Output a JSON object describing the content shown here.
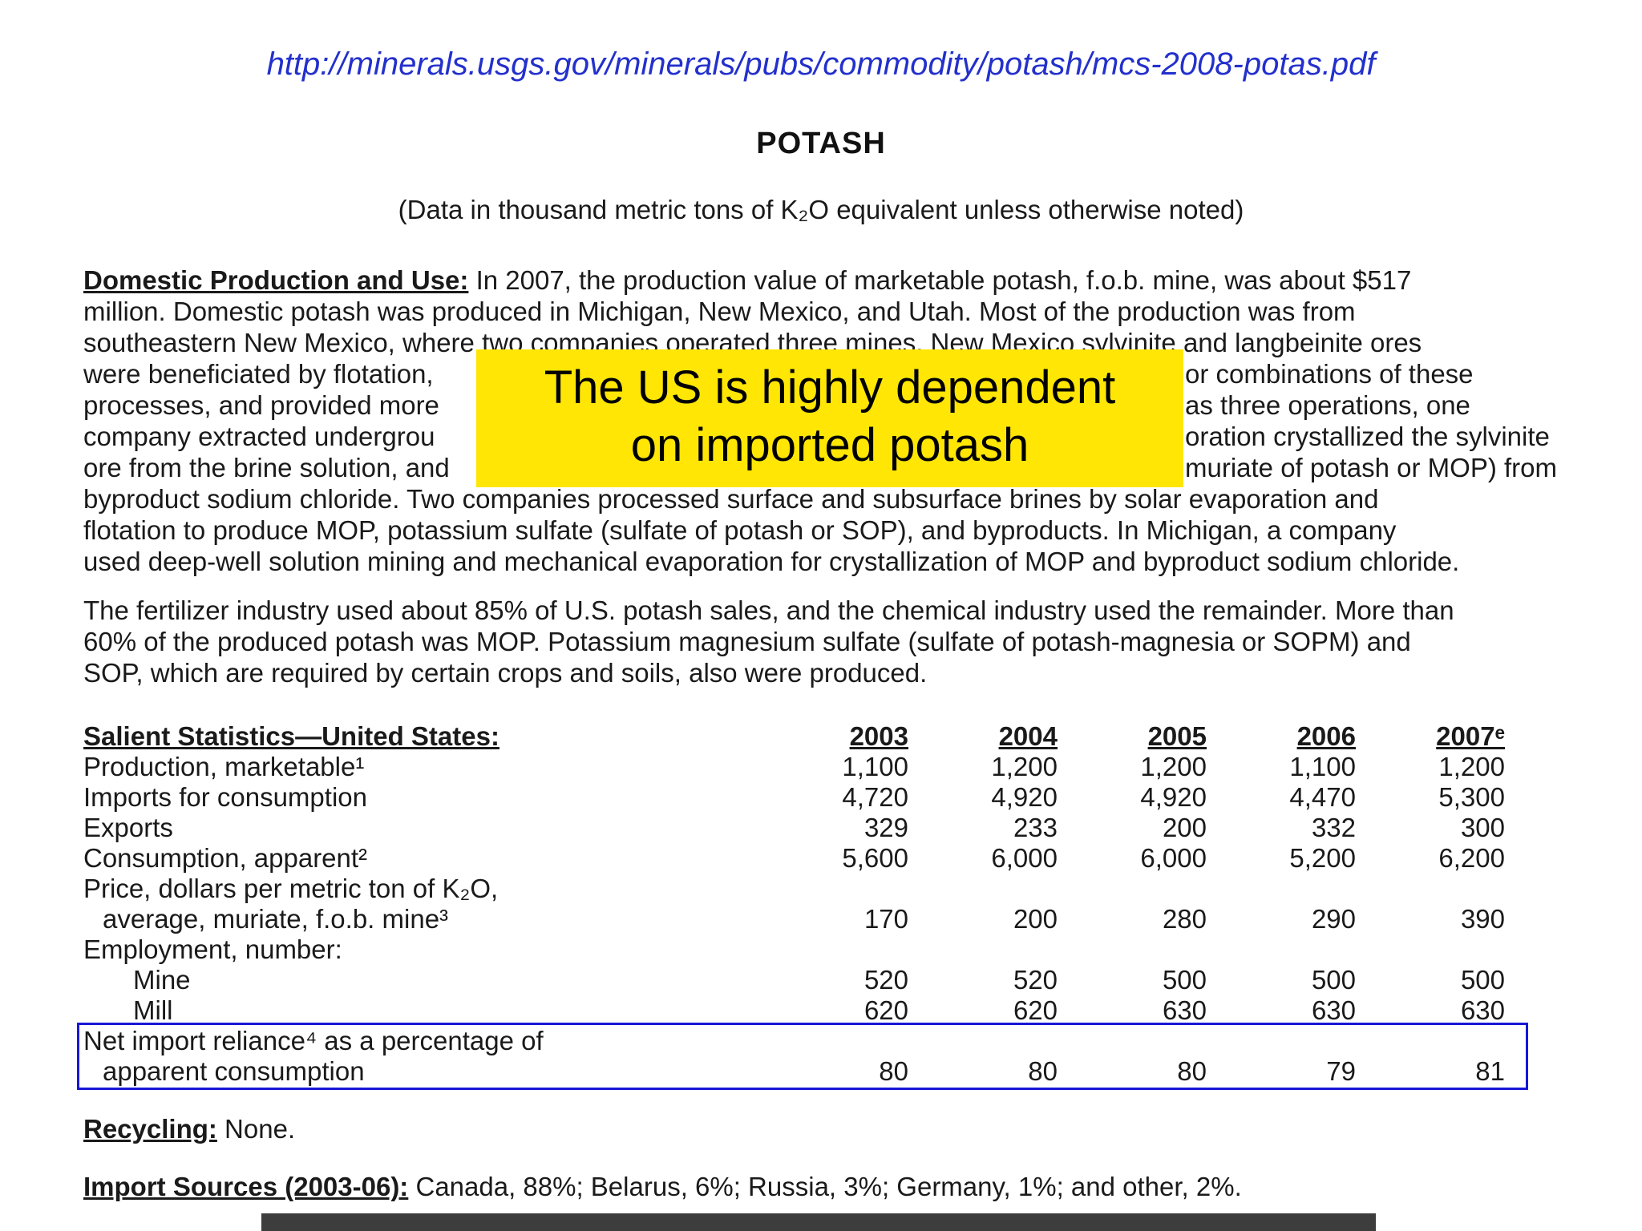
{
  "colors": {
    "highlight_yellow": "#ffe604",
    "net_import_box_blue": "#1717d6",
    "link_blue": "#2330cc",
    "bottom_bar_gray": "#3d3d3d"
  },
  "header": {
    "url": "http://minerals.usgs.gov/minerals/pubs/commodity/potash/mcs-2008-potas.pdf",
    "title": "POTASH",
    "subtitle": "(Data in thousand metric tons of K₂O equivalent unless otherwise noted)"
  },
  "callout": {
    "line1": "The US is highly dependent",
    "line2": "on imported potash"
  },
  "domestic": {
    "heading": "Domestic Production and Use:",
    "line1_rest": " In 2007, the production value of marketable potash, f.o.b. mine, was about $517",
    "line2": "million. Domestic potash was produced in Michigan, New Mexico, and Utah. Most of the production was from",
    "line3": "southeastern New Mexico, where two companies operated three mines. New Mexico sylvinite and langbeinite ores",
    "line4_left": "were beneficiated by flotation,",
    "line4_right": "or combinations of these",
    "line5_left": "processes, and provided more",
    "line5_right": "as three operations, one",
    "line6_left": "company extracted undergrou",
    "line6_right": "oration crystallized the sylvinite",
    "line7_left": "ore from the brine solution, and",
    "line7_right": "muriate of potash or MOP) from",
    "line8": "byproduct sodium chloride. Two companies processed surface and subsurface brines by solar evaporation and",
    "line9": "flotation to produce MOP, potassium sulfate (sulfate of potash or SOP), and byproducts. In Michigan, a company",
    "line10": "used deep-well solution mining and mechanical evaporation for crystallization of MOP and byproduct sodium chloride."
  },
  "fertilizer": {
    "line1": "The fertilizer industry used about 85% of U.S. potash sales, and the chemical industry used the remainder. More than",
    "line2": "60% of the produced potash was MOP. Potassium magnesium sulfate (sulfate of potash-magnesia or SOPM) and",
    "line3": "SOP, which are required by certain crops and soils, also were produced."
  },
  "table": {
    "heading": "Salient Statistics—United States:",
    "years": [
      "2003",
      "2004",
      "2005",
      "2006",
      "2007ᵉ"
    ],
    "rows": [
      {
        "label": "Production, marketable¹",
        "values": [
          "1,100",
          "1,200",
          "1,200",
          "1,100",
          "1,200"
        ]
      },
      {
        "label": "Imports for consumption",
        "values": [
          "4,720",
          "4,920",
          "4,920",
          "4,470",
          "5,300"
        ]
      },
      {
        "label": "Exports",
        "values": [
          "329",
          "233",
          "200",
          "332",
          "300"
        ]
      },
      {
        "label": "Consumption, apparent²",
        "values": [
          "5,600",
          "6,000",
          "6,000",
          "5,200",
          "6,200"
        ]
      },
      {
        "label": "Price, dollars per metric ton of K₂O,",
        "values": [
          "",
          "",
          "",
          "",
          ""
        ]
      },
      {
        "label": "average, muriate, f.o.b. mine³",
        "values": [
          "170",
          "200",
          "280",
          "290",
          "390"
        ]
      },
      {
        "label": "Employment, number:",
        "values": [
          "",
          "",
          "",
          "",
          ""
        ]
      },
      {
        "label": "Mine",
        "values": [
          "520",
          "520",
          "500",
          "500",
          "500"
        ]
      },
      {
        "label": "Mill",
        "values": [
          "620",
          "620",
          "630",
          "630",
          "630"
        ]
      },
      {
        "label": "Net import reliance⁴ as a percentage of",
        "values": [
          "",
          "",
          "",
          "",
          ""
        ]
      },
      {
        "label": "apparent consumption",
        "values": [
          "80",
          "80",
          "80",
          "79",
          "81"
        ]
      }
    ]
  },
  "recycling": {
    "heading": "Recycling:",
    "text": " None."
  },
  "import_sources": {
    "heading": "Import Sources (2003-06):",
    "text": " Canada, 88%; Belarus, 6%; Russia, 3%; Germany, 1%; and other, 2%."
  }
}
